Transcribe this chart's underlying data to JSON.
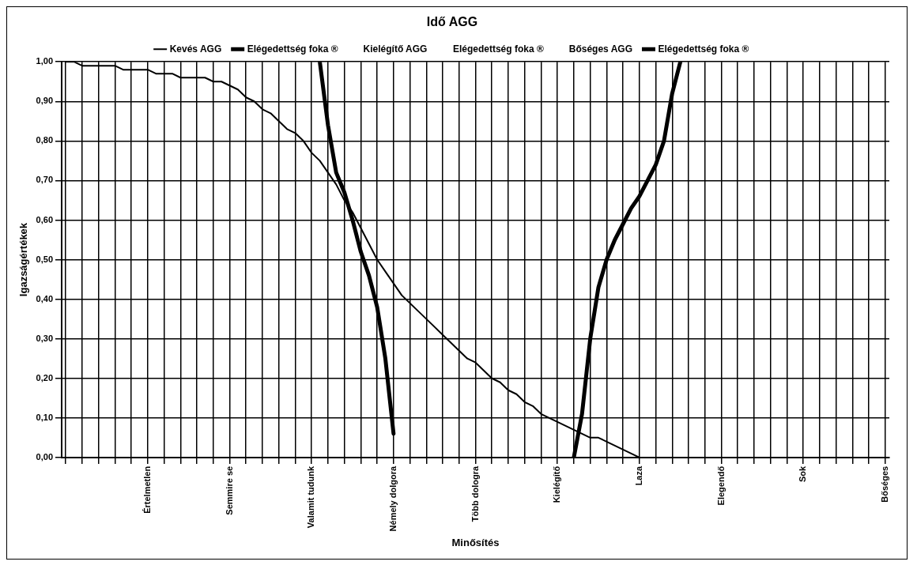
{
  "chart_data": {
    "type": "line",
    "title": "Idő AGG",
    "xlabel": "Minősítés",
    "ylabel": "Igazságértékek",
    "categories": [
      null,
      null,
      null,
      null,
      null,
      null,
      null,
      null,
      null,
      null,
      "Értelmetlen",
      null,
      null,
      null,
      null,
      null,
      null,
      null,
      null,
      null,
      "Semmire se",
      null,
      null,
      null,
      null,
      null,
      null,
      null,
      null,
      null,
      "Valamit tudunk",
      null,
      null,
      null,
      null,
      null,
      null,
      null,
      null,
      null,
      "Némely dolgora",
      null,
      null,
      null,
      null,
      null,
      null,
      null,
      null,
      null,
      "Több dologra",
      null,
      null,
      null,
      null,
      null,
      null,
      null,
      null,
      null,
      "Kielégítő",
      null,
      null,
      null,
      null,
      null,
      null,
      null,
      null,
      null,
      "Laza",
      null,
      null,
      null,
      null,
      null,
      null,
      null,
      null,
      null,
      "Elegendő",
      null,
      null,
      null,
      null,
      null,
      null,
      null,
      null,
      null,
      "Sok",
      null,
      null,
      null,
      null,
      null,
      null,
      null,
      null,
      null,
      "Bőséges"
    ],
    "ylim": [
      0,
      1
    ],
    "yticks": [
      {
        "value": 0,
        "label": "0,00"
      },
      {
        "value": 0.1,
        "label": "0,10"
      },
      {
        "value": 0.2,
        "label": "0,20"
      },
      {
        "value": 0.3,
        "label": "0,30"
      },
      {
        "value": 0.4,
        "label": "0,40"
      },
      {
        "value": 0.5,
        "label": "0,50"
      },
      {
        "value": 0.6,
        "label": "0,60"
      },
      {
        "value": 0.7,
        "label": "0,70"
      },
      {
        "value": 0.8,
        "label": "0,80"
      },
      {
        "value": 0.9,
        "label": "0,90"
      },
      {
        "value": 1,
        "label": "1,00"
      }
    ],
    "grid": true,
    "legend": "top",
    "marker": "none",
    "line_style": "solid",
    "series": [
      {
        "name": "Kevés AGG",
        "color": "#000000",
        "values": [
          1.0,
          1.0,
          0.99,
          0.99,
          0.99,
          0.99,
          0.99,
          0.98,
          0.98,
          0.98,
          0.98,
          0.97,
          0.97,
          0.97,
          0.96,
          0.96,
          0.96,
          0.96,
          0.95,
          0.95,
          0.94,
          0.93,
          0.91,
          0.9,
          0.88,
          0.87,
          0.85,
          0.83,
          0.82,
          0.8,
          0.77,
          0.75,
          0.72,
          0.69,
          0.65,
          0.62,
          0.58,
          0.54,
          0.5,
          0.47,
          0.44,
          0.41,
          0.39,
          0.37,
          0.35,
          0.33,
          0.31,
          0.29,
          0.27,
          0.25,
          0.24,
          0.22,
          0.2,
          0.19,
          0.17,
          0.16,
          0.14,
          0.13,
          0.11,
          0.1,
          0.09,
          0.08,
          0.07,
          0.06,
          0.05,
          0.05,
          0.04,
          0.03,
          0.02,
          0.01,
          0,
          null,
          null,
          null,
          null,
          null,
          null,
          null,
          null,
          null,
          null,
          null,
          null,
          null,
          null,
          null,
          null,
          null,
          null,
          null,
          null,
          null,
          null,
          null,
          null,
          null,
          null,
          null,
          null,
          null,
          null
        ]
      },
      {
        "name": "Elégedettség foka ®",
        "color": "#000000",
        "values": [
          null,
          null,
          null,
          null,
          null,
          null,
          null,
          null,
          null,
          null,
          null,
          null,
          null,
          null,
          null,
          null,
          null,
          null,
          null,
          null,
          null,
          null,
          null,
          null,
          null,
          null,
          null,
          null,
          null,
          null,
          null,
          1.0,
          0.84,
          0.72,
          0.67,
          0.6,
          0.52,
          0.46,
          0.38,
          0.25,
          0.06,
          null,
          null,
          null,
          null,
          null,
          null,
          null,
          null,
          null,
          null,
          null,
          null,
          null,
          null,
          null,
          null,
          null,
          null,
          null,
          null,
          null,
          null,
          null,
          null,
          null,
          null,
          null,
          null,
          null,
          null,
          null,
          null,
          null,
          null,
          null,
          null,
          null,
          null,
          null,
          null,
          null,
          null,
          null,
          null,
          null,
          null,
          null,
          null,
          null,
          null,
          null,
          null,
          null,
          null,
          null,
          null,
          null,
          null,
          null,
          null
        ]
      },
      {
        "name": "Kielégítő AGG",
        "values": [
          null,
          null,
          null,
          null,
          null,
          null,
          null,
          null,
          null,
          null,
          null,
          null,
          null,
          null,
          null,
          null,
          null,
          null,
          null,
          null,
          null,
          null,
          null,
          null,
          null,
          null,
          null,
          null,
          null,
          null,
          null,
          null,
          null,
          null,
          null,
          null,
          null,
          null,
          null,
          null,
          null,
          null,
          null,
          null,
          null,
          null,
          null,
          null,
          null,
          null,
          null,
          null,
          null,
          null,
          null,
          null,
          null,
          null,
          null,
          null,
          null,
          null,
          null,
          null,
          null,
          null,
          null,
          null,
          null,
          null,
          null,
          null,
          null,
          null,
          null,
          null,
          null,
          null,
          null,
          null,
          null,
          null,
          null,
          null,
          null,
          null,
          null,
          null,
          null,
          null,
          null,
          null,
          null,
          null,
          null,
          null,
          null,
          null,
          null,
          null,
          null
        ]
      },
      {
        "name": "Elégedettség foka ®",
        "values": [
          null,
          null,
          null,
          null,
          null,
          null,
          null,
          null,
          null,
          null,
          null,
          null,
          null,
          null,
          null,
          null,
          null,
          null,
          null,
          null,
          null,
          null,
          null,
          null,
          null,
          null,
          null,
          null,
          null,
          null,
          null,
          null,
          null,
          null,
          null,
          null,
          null,
          null,
          null,
          null,
          null,
          null,
          null,
          null,
          null,
          null,
          null,
          null,
          null,
          null,
          null,
          null,
          null,
          null,
          null,
          null,
          null,
          null,
          null,
          null,
          null,
          null,
          null,
          null,
          null,
          null,
          null,
          null,
          null,
          null,
          null,
          null,
          null,
          null,
          null,
          null,
          null,
          null,
          null,
          null,
          null,
          null,
          null,
          null,
          null,
          null,
          null,
          null,
          null,
          null,
          null,
          null,
          null,
          null,
          null,
          null,
          null,
          null,
          null,
          null,
          null
        ]
      },
      {
        "name": "Bőséges AGG",
        "values": [
          null,
          null,
          null,
          null,
          null,
          null,
          null,
          null,
          null,
          null,
          null,
          null,
          null,
          null,
          null,
          null,
          null,
          null,
          null,
          null,
          null,
          null,
          null,
          null,
          null,
          null,
          null,
          null,
          null,
          null,
          null,
          null,
          null,
          null,
          null,
          null,
          null,
          null,
          null,
          null,
          null,
          null,
          null,
          null,
          null,
          null,
          null,
          null,
          null,
          null,
          null,
          null,
          null,
          null,
          null,
          null,
          null,
          null,
          null,
          null,
          null,
          null,
          null,
          null,
          null,
          null,
          null,
          null,
          null,
          null,
          null,
          null,
          null,
          null,
          null,
          null,
          null,
          null,
          null,
          null,
          null,
          null,
          null,
          null,
          null,
          null,
          null,
          null,
          null,
          null,
          null,
          null,
          null,
          null,
          null,
          null,
          null,
          null,
          null,
          null,
          null
        ]
      },
      {
        "name": "Elégedettség foka ®",
        "color": "#000000",
        "values": [
          null,
          null,
          null,
          null,
          null,
          null,
          null,
          null,
          null,
          null,
          null,
          null,
          null,
          null,
          null,
          null,
          null,
          null,
          null,
          null,
          null,
          null,
          null,
          null,
          null,
          null,
          null,
          null,
          null,
          null,
          null,
          null,
          null,
          null,
          null,
          null,
          null,
          null,
          null,
          null,
          null,
          null,
          null,
          null,
          null,
          null,
          null,
          null,
          null,
          null,
          null,
          null,
          null,
          null,
          null,
          null,
          null,
          null,
          null,
          null,
          null,
          null,
          0,
          0.11,
          0.3,
          0.43,
          0.5,
          0.55,
          0.59,
          0.63,
          0.66,
          0.7,
          0.74,
          0.8,
          0.92,
          1.0,
          null,
          null,
          null,
          null,
          null,
          null,
          null,
          null,
          null,
          null,
          null,
          null,
          null,
          null,
          null,
          null,
          null,
          null,
          null,
          null,
          null,
          null,
          null,
          null,
          null
        ]
      }
    ]
  }
}
